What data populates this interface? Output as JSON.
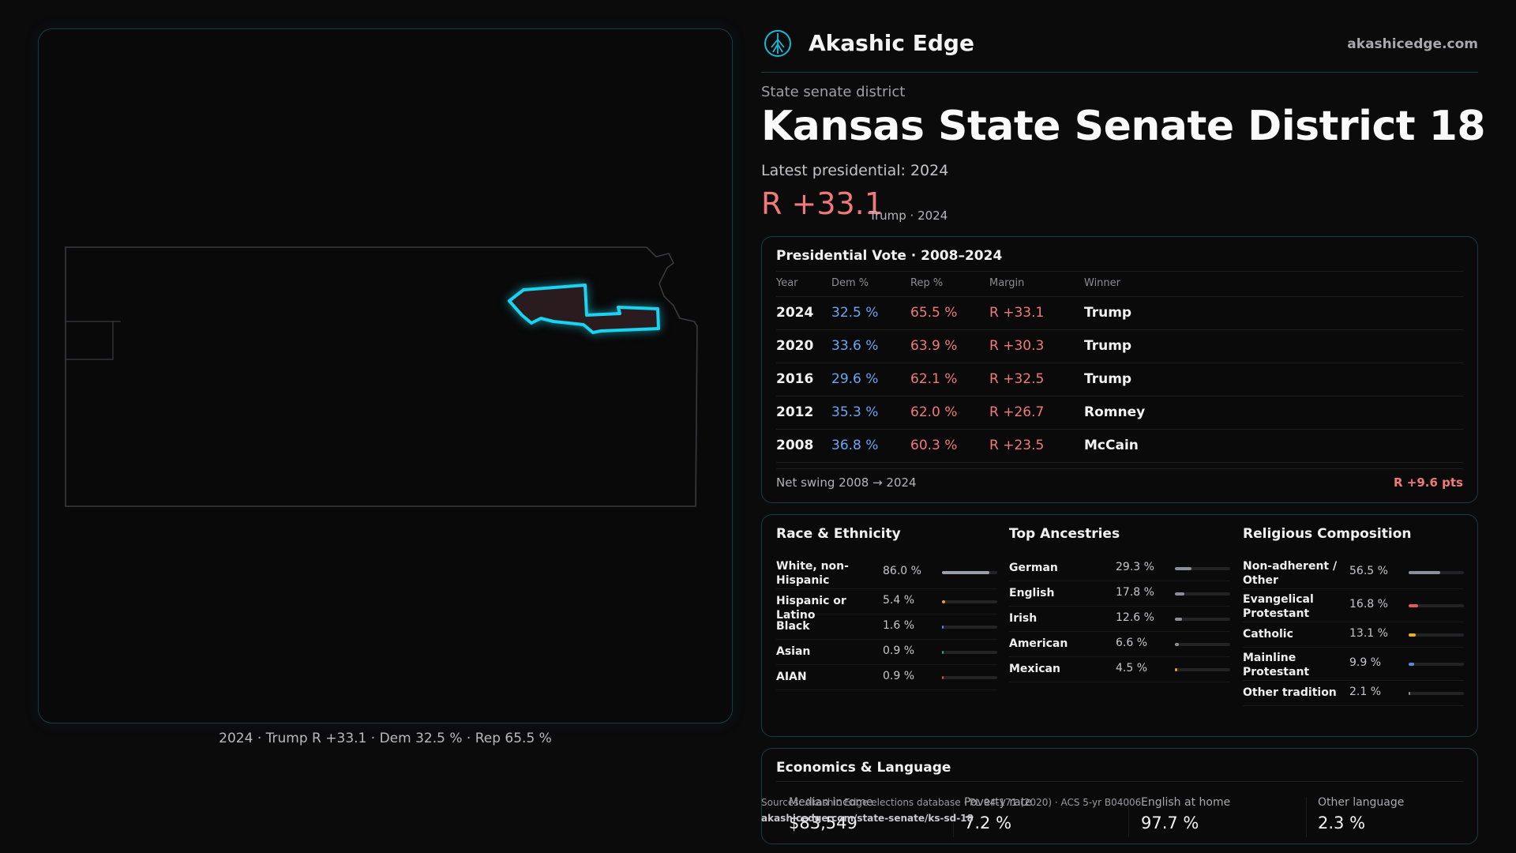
{
  "brand": {
    "name": "Akashic Edge",
    "site": "akashicedge.com",
    "logo_icon": "compass-tree-icon",
    "accent": "#19b8d2"
  },
  "map": {
    "caption": "2024 · Trump R +33.1 · Dem 32.5 % · Rep 65.5 %",
    "district_color": "#19d3f0"
  },
  "district": {
    "kicker": "State senate district",
    "title": "Kansas State Senate District 18",
    "latest_label": "Latest presidential: 2024",
    "margin": "R +33.1",
    "margin_note": "Trump · 2024"
  },
  "presidential": {
    "title": "Presidential Vote · 2008–2024",
    "headers": [
      "Year",
      "Dem %",
      "Rep %",
      "Margin",
      "Winner"
    ],
    "rows": [
      {
        "year": "2024",
        "dem": "32.5 %",
        "rep": "65.5 %",
        "margin": "R +33.1",
        "winner": "Trump"
      },
      {
        "year": "2020",
        "dem": "33.6 %",
        "rep": "63.9 %",
        "margin": "R +30.3",
        "winner": "Trump"
      },
      {
        "year": "2016",
        "dem": "29.6 %",
        "rep": "62.1 %",
        "margin": "R +32.5",
        "winner": "Trump"
      },
      {
        "year": "2012",
        "dem": "35.3 %",
        "rep": "62.0 %",
        "margin": "R +26.7",
        "winner": "Romney"
      },
      {
        "year": "2008",
        "dem": "36.8 %",
        "rep": "60.3 %",
        "margin": "R +23.5",
        "winner": "McCain"
      }
    ],
    "swing_label": "Net swing 2008 → 2024",
    "swing_value": "R +9.6 pts",
    "dem_color": "#6aa6f2",
    "rep_color": "#f07a7a"
  },
  "race": {
    "title": "Race & Ethnicity",
    "rows": [
      {
        "label": "White, non-Hispanic",
        "value": "86.0 %",
        "pct": 0.86,
        "color": "#9aa0a8"
      },
      {
        "label": "Hispanic or Latino",
        "value": "5.4 %",
        "pct": 0.054,
        "color": "#e0a030"
      },
      {
        "label": "Black",
        "value": "1.6 %",
        "pct": 0.016,
        "color": "#5a8ad8"
      },
      {
        "label": "Asian",
        "value": "0.9 %",
        "pct": 0.009,
        "color": "#3aa080"
      },
      {
        "label": "AIAN",
        "value": "0.9 %",
        "pct": 0.009,
        "color": "#c05a40"
      }
    ]
  },
  "ancestry": {
    "title": "Top Ancestries",
    "rows": [
      {
        "label": "German",
        "value": "29.3 %",
        "pct": 0.293,
        "color": "#8a9098"
      },
      {
        "label": "English",
        "value": "17.8 %",
        "pct": 0.178,
        "color": "#8a9098"
      },
      {
        "label": "Irish",
        "value": "12.6 %",
        "pct": 0.126,
        "color": "#8a9098"
      },
      {
        "label": "American",
        "value": "6.6 %",
        "pct": 0.066,
        "color": "#8a9098"
      },
      {
        "label": "Mexican",
        "value": "4.5 %",
        "pct": 0.045,
        "color": "#e0a030"
      }
    ]
  },
  "religion": {
    "title": "Religious Composition",
    "rows": [
      {
        "label": "Non-adherent / Other",
        "value": "56.5 %",
        "pct": 0.565,
        "color": "#8a9098"
      },
      {
        "label": "Evangelical Protestant",
        "value": "16.8 %",
        "pct": 0.168,
        "color": "#e05a5a"
      },
      {
        "label": "Catholic",
        "value": "13.1 %",
        "pct": 0.131,
        "color": "#e0b030"
      },
      {
        "label": "Mainline Protestant",
        "value": "9.9 %",
        "pct": 0.099,
        "color": "#5a8ad8"
      },
      {
        "label": "Other tradition",
        "value": "2.1 %",
        "pct": 0.021,
        "color": "#8a9098"
      }
    ]
  },
  "economics": {
    "title": "Economics & Language",
    "stats": [
      {
        "label": "Median income",
        "value": "$83,549"
      },
      {
        "label": "Poverty rate",
        "value": "7.2 %"
      },
      {
        "label": "English at home",
        "value": "97.7 %"
      },
      {
        "label": "Other language",
        "value": "2.3 %"
      }
    ]
  },
  "source": {
    "line": "Sources: Akashic Edge elections database · PL 94-171 (2020) · ACS 5-yr B04006",
    "url": "akashicedge.com/state-senate/ks-sd-18"
  }
}
